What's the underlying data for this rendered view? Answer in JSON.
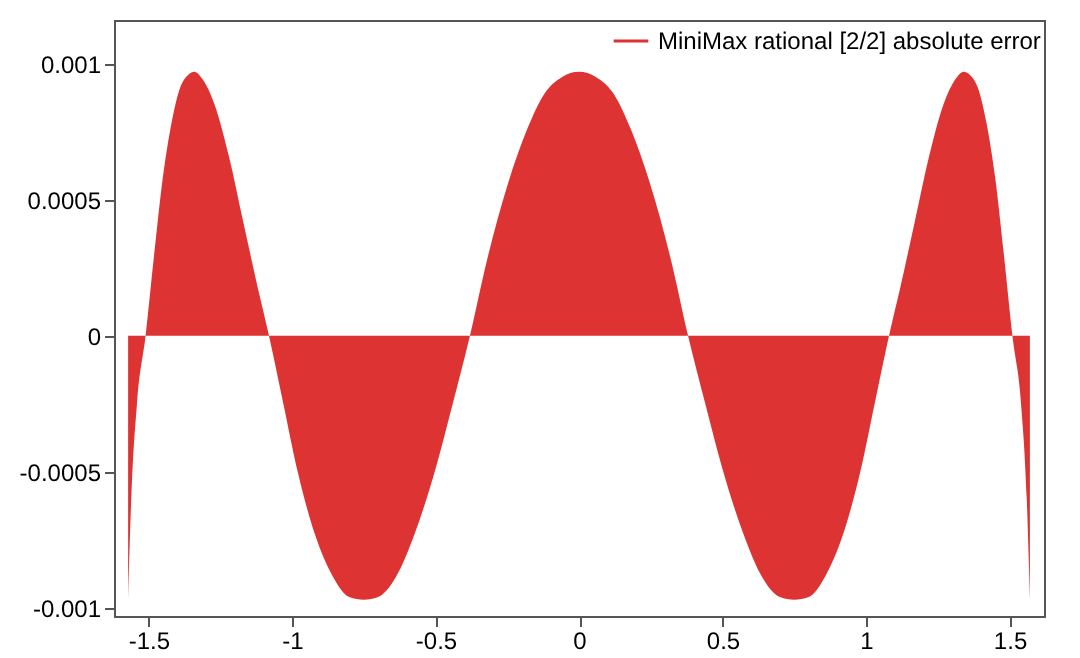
{
  "chart_data": {
    "type": "area",
    "legend": "top right",
    "xlim": [
      -1.62,
      1.62
    ],
    "xticks": [
      -1.5,
      -1,
      -0.5,
      0,
      0.5,
      1,
      1.5
    ],
    "ylim": [
      -0.00103,
      0.00116
    ],
    "yticks": [
      -0.001,
      -0.0005,
      0,
      0.0005,
      0.001
    ],
    "x": [
      -1.5708,
      -1.56,
      -1.54,
      -1.51,
      -1.48,
      -1.45,
      -1.42,
      -1.39,
      -1.36,
      -1.34,
      -1.31,
      -1.27,
      -1.22,
      -1.17,
      -1.12,
      -1.08,
      -1.03,
      -0.98,
      -0.92,
      -0.86,
      -0.8,
      -0.75,
      -0.7,
      -0.64,
      -0.57,
      -0.5,
      -0.44,
      -0.38,
      -0.32,
      -0.25,
      -0.18,
      -0.12,
      -0.06,
      0,
      0.06,
      0.12,
      0.18,
      0.25,
      0.32,
      0.38,
      0.44,
      0.5,
      0.57,
      0.64,
      0.7,
      0.75,
      0.8,
      0.86,
      0.92,
      0.98,
      1.03,
      1.08,
      1.12,
      1.17,
      1.22,
      1.27,
      1.31,
      1.34,
      1.36,
      1.39,
      1.42,
      1.45,
      1.48,
      1.51,
      1.54,
      1.56,
      1.5708
    ],
    "series": [
      {
        "name": "MiniMax rational [2/2] absolute error",
        "color": "#dd3333",
        "values": [
          -0.00097,
          -0.0006,
          -0.00025,
          0,
          0.0003,
          0.00058,
          0.00078,
          0.00091,
          0.00096,
          0.00097,
          0.00094,
          0.00085,
          0.00066,
          0.00042,
          0.00018,
          0,
          -0.00025,
          -0.0005,
          -0.00073,
          -0.00088,
          -0.00096,
          -0.00097,
          -0.00096,
          -0.00089,
          -0.00072,
          -0.00049,
          -0.00025,
          0,
          0.00028,
          0.00055,
          0.00076,
          0.00089,
          0.00095,
          0.00097,
          0.00095,
          0.00089,
          0.00076,
          0.00055,
          0.00028,
          0,
          -0.00025,
          -0.00049,
          -0.00072,
          -0.00089,
          -0.00096,
          -0.00097,
          -0.00096,
          -0.00088,
          -0.00073,
          -0.0005,
          -0.00025,
          0,
          0.00018,
          0.00042,
          0.00066,
          0.00085,
          0.00094,
          0.00097,
          0.00096,
          0.00091,
          0.00078,
          0.00058,
          0.0003,
          0,
          -0.00025,
          -0.0006,
          -0.00097
        ]
      }
    ]
  }
}
